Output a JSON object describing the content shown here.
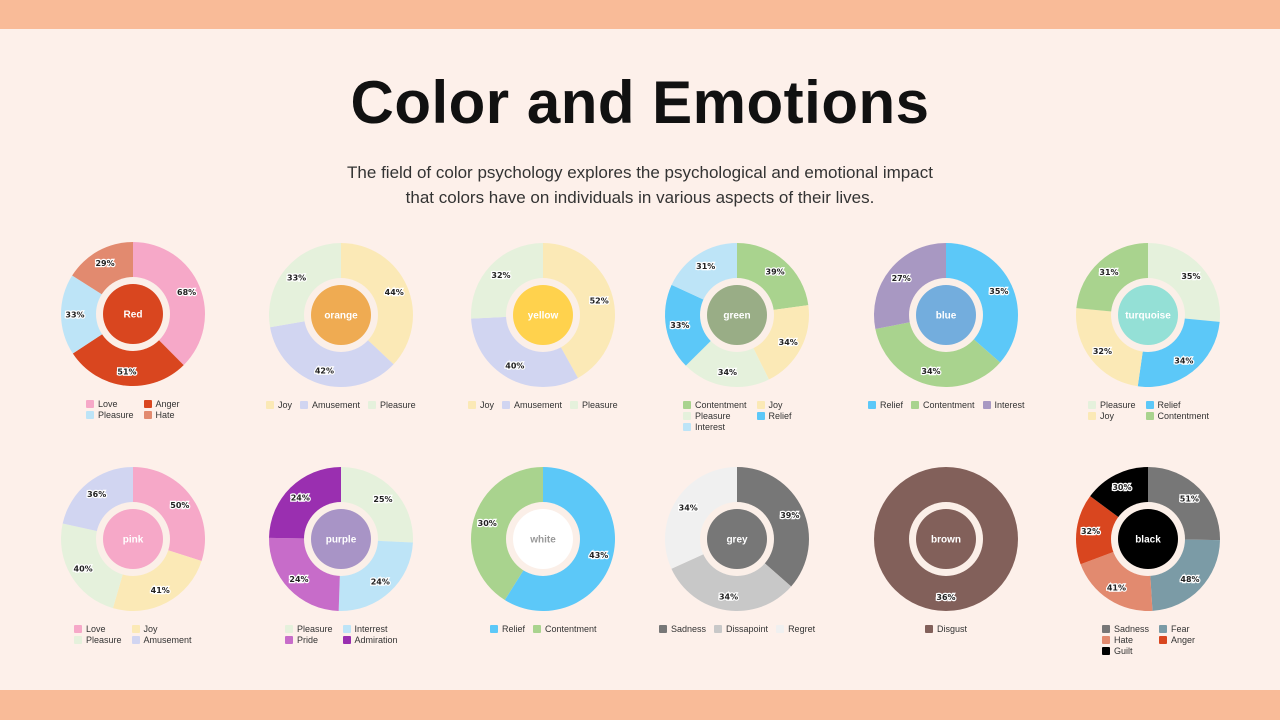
{
  "header": {
    "title": "Color and Emotions",
    "subtitle": "The field of color psychology explores the psychological and emotional impact that colors have on individuals in various aspects of their lives."
  },
  "palette": {
    "background": "#fdf0ea",
    "band": "#f9bb98"
  },
  "chart_data": [
    {
      "type": "pie",
      "label": "Red",
      "center_color": "#d9461f",
      "center_text_color": "#ffffff",
      "legend": [
        {
          "name": "Love",
          "color": "#f6a8c8"
        },
        {
          "name": "Anger",
          "color": "#d9461f"
        },
        {
          "name": "Pleasure",
          "color": "#bde4f7"
        },
        {
          "name": "Hate",
          "color": "#e28a6f"
        }
      ],
      "slices": [
        {
          "name": "Love",
          "value": 68,
          "color": "#f6a8c8"
        },
        {
          "name": "Anger",
          "value": 51,
          "color": "#d9461f"
        },
        {
          "name": "Pleasure",
          "value": 33,
          "color": "#bde4f7"
        },
        {
          "name": "Hate",
          "value": 29,
          "color": "#e28a6f"
        }
      ]
    },
    {
      "type": "pie",
      "label": "orange",
      "center_color": "#efab52",
      "center_text_color": "#ffffff",
      "legend": [
        {
          "name": "Joy",
          "color": "#fbe9b6"
        },
        {
          "name": "Amusement",
          "color": "#d1d5f1"
        },
        {
          "name": "Pleasure",
          "color": "#e5f1dc"
        }
      ],
      "slices": [
        {
          "name": "Joy",
          "value": 44,
          "color": "#fbe9b6"
        },
        {
          "name": "Amusement",
          "value": 42,
          "color": "#d1d5f1"
        },
        {
          "name": "Pleasure",
          "value": 33,
          "color": "#e5f1dc"
        }
      ]
    },
    {
      "type": "pie",
      "label": "yellow",
      "center_color": "#ffd24d",
      "center_text_color": "#ffffff",
      "legend": [
        {
          "name": "Joy",
          "color": "#fbe9b6"
        },
        {
          "name": "Amusement",
          "color": "#d1d5f1"
        },
        {
          "name": "Pleasure",
          "color": "#e5f1dc"
        }
      ],
      "slices": [
        {
          "name": "Joy",
          "value": 52,
          "color": "#fbe9b6"
        },
        {
          "name": "Amusement",
          "value": 40,
          "color": "#d1d5f1"
        },
        {
          "name": "Pleasure",
          "value": 32,
          "color": "#e5f1dc"
        }
      ]
    },
    {
      "type": "pie",
      "label": "green",
      "center_color": "#99ad86",
      "center_text_color": "#ffffff",
      "legend": [
        {
          "name": "Contentment",
          "color": "#a9d38e"
        },
        {
          "name": "Joy",
          "color": "#fbe9b6"
        },
        {
          "name": "Pleasure",
          "color": "#e5f1dc"
        },
        {
          "name": "Relief",
          "color": "#5cc8f8"
        },
        {
          "name": "Interest",
          "color": "#bde4f7"
        }
      ],
      "slices": [
        {
          "name": "Contentment",
          "value": 39,
          "color": "#a9d38e"
        },
        {
          "name": "Joy",
          "value": 34,
          "color": "#fbe9b6"
        },
        {
          "name": "Pleasure",
          "value": 34,
          "color": "#e5f1dc"
        },
        {
          "name": "Relief",
          "value": 33,
          "color": "#5cc8f8"
        },
        {
          "name": "Interest",
          "value": 31,
          "color": "#bde4f7"
        }
      ]
    },
    {
      "type": "pie",
      "label": "blue",
      "center_color": "#73addd",
      "center_text_color": "#ffffff",
      "legend": [
        {
          "name": "Relief",
          "color": "#5cc8f8"
        },
        {
          "name": "Contentment",
          "color": "#a9d38e"
        },
        {
          "name": "Interest",
          "color": "#a898c2"
        }
      ],
      "slices": [
        {
          "name": "Relief",
          "value": 35,
          "color": "#5cc8f8"
        },
        {
          "name": "Contentment",
          "value": 34,
          "color": "#a9d38e"
        },
        {
          "name": "Interest",
          "value": 27,
          "color": "#a898c2"
        }
      ]
    },
    {
      "type": "pie",
      "label": "turquoise",
      "center_color": "#94e0d6",
      "center_text_color": "#ffffff",
      "legend": [
        {
          "name": "Pleasure",
          "color": "#e5f1dc"
        },
        {
          "name": "Relief",
          "color": "#5cc8f8"
        },
        {
          "name": "Joy",
          "color": "#fbe9b6"
        },
        {
          "name": "Contentment",
          "color": "#a9d38e"
        }
      ],
      "slices": [
        {
          "name": "Pleasure",
          "value": 35,
          "color": "#e5f1dc"
        },
        {
          "name": "Relief",
          "value": 34,
          "color": "#5cc8f8"
        },
        {
          "name": "Joy",
          "value": 32,
          "color": "#fbe9b6"
        },
        {
          "name": "Contentment",
          "value": 31,
          "color": "#a9d38e"
        }
      ]
    },
    {
      "type": "pie",
      "label": "pink",
      "center_color": "#f6a8c8",
      "center_text_color": "#ffffff",
      "legend": [
        {
          "name": "Love",
          "color": "#f6a8c8"
        },
        {
          "name": "Joy",
          "color": "#fbe9b6"
        },
        {
          "name": "Pleasure",
          "color": "#e5f1dc"
        },
        {
          "name": "Amusement",
          "color": "#d1d5f1"
        }
      ],
      "slices": [
        {
          "name": "Love",
          "value": 50,
          "color": "#f6a8c8"
        },
        {
          "name": "Joy",
          "value": 41,
          "color": "#fbe9b6"
        },
        {
          "name": "Pleasure",
          "value": 40,
          "color": "#e5f1dc"
        },
        {
          "name": "Amusement",
          "value": 36,
          "color": "#d1d5f1"
        }
      ]
    },
    {
      "type": "pie",
      "label": "purple",
      "center_color": "#a894c6",
      "center_text_color": "#ffffff",
      "legend": [
        {
          "name": "Pleasure",
          "color": "#e5f1dc"
        },
        {
          "name": "Interrest",
          "color": "#bde4f7"
        },
        {
          "name": "Pride",
          "color": "#c76cc9"
        },
        {
          "name": "Admiration",
          "color": "#9a2fb0"
        }
      ],
      "slices": [
        {
          "name": "Pleasure",
          "value": 25,
          "color": "#e5f1dc"
        },
        {
          "name": "Interrest",
          "value": 24,
          "color": "#bde4f7"
        },
        {
          "name": "Pride",
          "value": 24,
          "color": "#c76cc9"
        },
        {
          "name": "Admiration",
          "value": 24,
          "color": "#9a2fb0"
        }
      ]
    },
    {
      "type": "pie",
      "label": "white",
      "center_color": "#ffffff",
      "center_text_color": "#999999",
      "legend": [
        {
          "name": "Relief",
          "color": "#5cc8f8"
        },
        {
          "name": "Contentment",
          "color": "#a9d38e"
        }
      ],
      "slices": [
        {
          "name": "Relief",
          "value": 43,
          "color": "#5cc8f8"
        },
        {
          "name": "Contentment",
          "value": 30,
          "color": "#a9d38e"
        }
      ]
    },
    {
      "type": "pie",
      "label": "grey",
      "center_color": "#777777",
      "center_text_color": "#ffffff",
      "legend": [
        {
          "name": "Sadness",
          "color": "#777777"
        },
        {
          "name": "Dissapoint",
          "color": "#c8c8c8"
        },
        {
          "name": "Regret",
          "color": "#f0f0f0"
        }
      ],
      "slices": [
        {
          "name": "Sadness",
          "value": 39,
          "color": "#777777"
        },
        {
          "name": "Dissapoint",
          "value": 34,
          "color": "#c8c8c8"
        },
        {
          "name": "Regret",
          "value": 34,
          "color": "#f0f0f0"
        }
      ]
    },
    {
      "type": "pie",
      "label": "brown",
      "center_color": "#82605a",
      "center_text_color": "#ffffff",
      "legend": [
        {
          "name": "Disgust",
          "color": "#82605a"
        }
      ],
      "slices": [
        {
          "name": "Disgust",
          "value": 36,
          "color": "#82605a"
        }
      ]
    },
    {
      "type": "pie",
      "label": "black",
      "center_color": "#000000",
      "center_text_color": "#ffffff",
      "legend": [
        {
          "name": "Sadness",
          "color": "#777777"
        },
        {
          "name": "Fear",
          "color": "#7b9ba6"
        },
        {
          "name": "Hate",
          "color": "#e28a6f"
        },
        {
          "name": "Anger",
          "color": "#d9461f"
        },
        {
          "name": "Guilt",
          "color": "#000000"
        }
      ],
      "slices": [
        {
          "name": "Sadness",
          "value": 51,
          "color": "#777777"
        },
        {
          "name": "Fear",
          "value": 48,
          "color": "#7b9ba6"
        },
        {
          "name": "Hate",
          "value": 41,
          "color": "#e28a6f"
        },
        {
          "name": "Anger",
          "value": 32,
          "color": "#d9461f"
        },
        {
          "name": "Guilt",
          "value": 30,
          "color": "#000000"
        }
      ]
    }
  ]
}
